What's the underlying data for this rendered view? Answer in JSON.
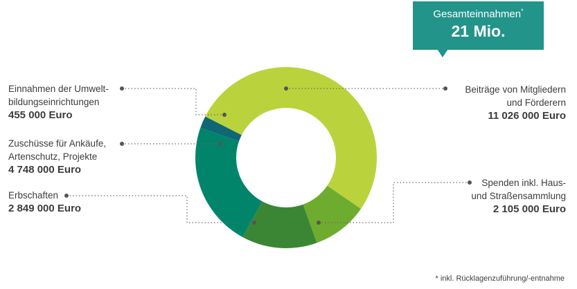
{
  "callout": {
    "title": "Gesamteinnahmen",
    "marker": "*",
    "value": "21 Mio.",
    "color": "#22948a"
  },
  "chart_data": {
    "type": "pie",
    "style": "donut",
    "title": "",
    "series": [
      {
        "name": "Beiträge von Mitgliedern und Förderern",
        "value": 11026000,
        "label": "11 026 000 Euro",
        "color": "#bad33c"
      },
      {
        "name": "Spenden inkl. Haus- und Straßensammlung",
        "value": 2105000,
        "label": "2 105 000 Euro",
        "color": "#6eac2f"
      },
      {
        "name": "Erbschaften",
        "value": 2849000,
        "label": "2 849 000 Euro",
        "color": "#3b8634"
      },
      {
        "name": "Zuschüsse für Ankäufe, Artenschutz, Projekte",
        "value": 4748000,
        "label": "4 748 000 Euro",
        "color": "#00856b"
      },
      {
        "name": "Einnahmen der Umweltbildungseinrichtungen",
        "value": 455000,
        "label": "455 000 Euro",
        "color": "#0f6675"
      }
    ]
  },
  "labels": [
    {
      "name": "Beiträge von Mitgliedern\nund Förderern",
      "amount": "11 026 000 Euro"
    },
    {
      "name": "Spenden inkl. Haus-\nund Straßensammlung",
      "amount": "2 105 000 Euro"
    },
    {
      "name": "Erbschaften",
      "amount": "2 849 000 Euro"
    },
    {
      "name": "Zuschüsse für Ankäufe,\nArtenschutz, Projekte",
      "amount": "4 748 000 Euro"
    },
    {
      "name": "Einnahmen der Umwelt-\nbildungseinrichtungen",
      "amount": "455 000 Euro"
    }
  ],
  "footnote": "* inkl. Rücklagenzuführung/-entnahme"
}
